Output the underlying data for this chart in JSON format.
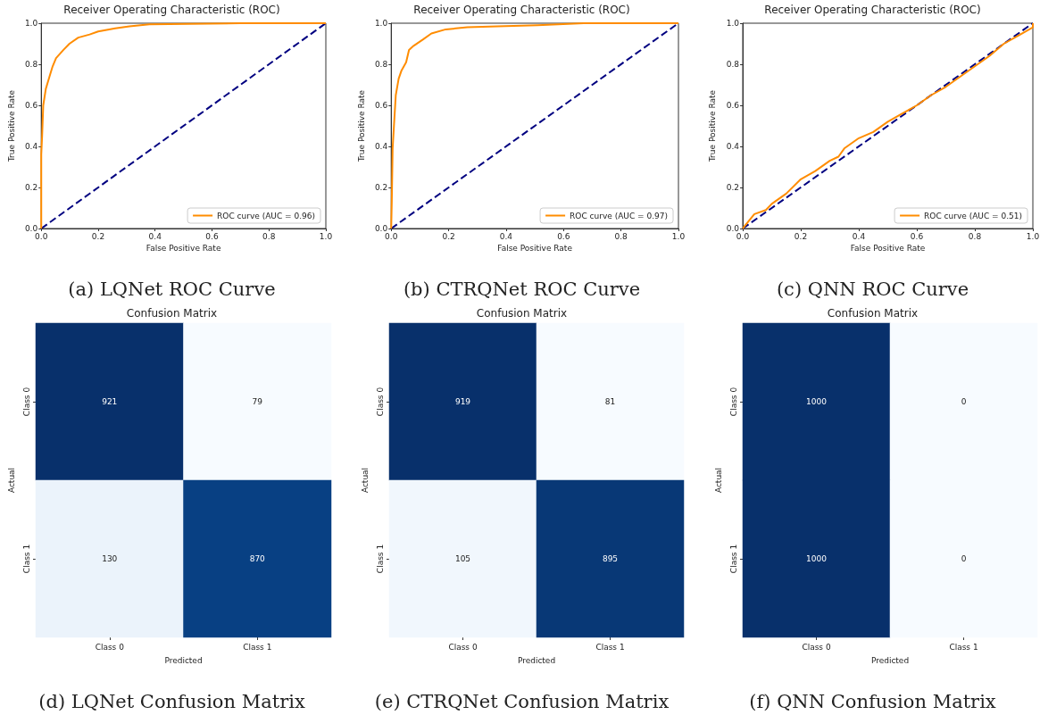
{
  "chart_data": [
    {
      "type": "line",
      "title": "Receiver Operating Characteristic (ROC)",
      "xlabel": "False Positive Rate",
      "ylabel": "True Positive Rate",
      "annotations": [
        "(a) LQNet ROC Curve"
      ],
      "xlim": [
        0,
        1
      ],
      "ylim": [
        0,
        1
      ],
      "xticks": [
        {
          "value": 0,
          "label": "0.0"
        },
        {
          "value": 0.2,
          "label": "0.2"
        },
        {
          "value": 0.4,
          "label": "0.4"
        },
        {
          "value": 0.6,
          "label": "0.6"
        },
        {
          "value": 0.8,
          "label": "0.8"
        },
        {
          "value": 1,
          "label": "1.0"
        }
      ],
      "yticks": [
        {
          "value": 0,
          "label": "0.0"
        },
        {
          "value": 0.2,
          "label": "0.2"
        },
        {
          "value": 0.4,
          "label": "0.4"
        },
        {
          "value": 0.6,
          "label": "0.6"
        },
        {
          "value": 0.8,
          "label": "0.8"
        },
        {
          "value": 1,
          "label": "1.0"
        }
      ],
      "legend": "bottom right",
      "series": [
        {
          "name": "ROC curve (AUC = 0.96)",
          "color": "#ff8c00",
          "line_style": "solid",
          "x": [
            0,
            0,
            0.003,
            0.007,
            0.016,
            0.029,
            0.04,
            0.052,
            0.078,
            0.099,
            0.13,
            0.17,
            0.2,
            0.26,
            0.31,
            0.38,
            0.7,
            1.0
          ],
          "values": [
            0,
            0.36,
            0.45,
            0.6,
            0.68,
            0.74,
            0.79,
            0.83,
            0.87,
            0.9,
            0.93,
            0.945,
            0.96,
            0.975,
            0.985,
            0.995,
            1.0,
            1.0
          ]
        },
        {
          "color": "#000080",
          "line_style": "dashed",
          "x": [
            0,
            1
          ],
          "values": [
            0,
            1
          ]
        }
      ]
    },
    {
      "type": "line",
      "title": "Receiver Operating Characteristic (ROC)",
      "xlabel": "False Positive Rate",
      "ylabel": "True Positive Rate",
      "annotations": [
        "(b) CTRQNet ROC Curve"
      ],
      "xlim": [
        0,
        1
      ],
      "ylim": [
        0,
        1
      ],
      "xticks": [
        {
          "value": 0,
          "label": "0.0"
        },
        {
          "value": 0.2,
          "label": "0.2"
        },
        {
          "value": 0.4,
          "label": "0.4"
        },
        {
          "value": 0.6,
          "label": "0.6"
        },
        {
          "value": 0.8,
          "label": "0.8"
        },
        {
          "value": 1,
          "label": "1.0"
        }
      ],
      "yticks": [
        {
          "value": 0,
          "label": "0.0"
        },
        {
          "value": 0.2,
          "label": "0.2"
        },
        {
          "value": 0.4,
          "label": "0.4"
        },
        {
          "value": 0.6,
          "label": "0.6"
        },
        {
          "value": 0.8,
          "label": "0.8"
        },
        {
          "value": 1,
          "label": "1.0"
        }
      ],
      "legend": "bottom right",
      "series": [
        {
          "name": "ROC curve (AUC = 0.97)",
          "color": "#ff8c00",
          "line_style": "solid",
          "x": [
            0,
            0.002,
            0.005,
            0.01,
            0.016,
            0.026,
            0.036,
            0.052,
            0.062,
            0.078,
            0.11,
            0.14,
            0.19,
            0.265,
            0.37,
            0.51,
            0.67,
            1.0
          ],
          "values": [
            0,
            0.13,
            0.39,
            0.51,
            0.65,
            0.73,
            0.77,
            0.81,
            0.87,
            0.89,
            0.92,
            0.95,
            0.97,
            0.98,
            0.985,
            0.99,
            1.0,
            1.0
          ]
        },
        {
          "color": "#000080",
          "line_style": "dashed",
          "x": [
            0,
            1
          ],
          "values": [
            0,
            1
          ]
        }
      ]
    },
    {
      "type": "line",
      "title": "Receiver Operating Characteristic (ROC)",
      "xlabel": "False Positive Rate",
      "ylabel": "True Positive Rate",
      "annotations": [
        "(c) QNN ROC Curve"
      ],
      "xlim": [
        0,
        1
      ],
      "ylim": [
        0,
        1
      ],
      "xticks": [
        {
          "value": 0,
          "label": "0.0"
        },
        {
          "value": 0.2,
          "label": "0.2"
        },
        {
          "value": 0.4,
          "label": "0.4"
        },
        {
          "value": 0.6,
          "label": "0.6"
        },
        {
          "value": 0.8,
          "label": "0.8"
        },
        {
          "value": 1,
          "label": "1.0"
        }
      ],
      "yticks": [
        {
          "value": 0,
          "label": "0.0"
        },
        {
          "value": 0.2,
          "label": "0.2"
        },
        {
          "value": 0.4,
          "label": "0.4"
        },
        {
          "value": 0.6,
          "label": "0.6"
        },
        {
          "value": 0.8,
          "label": "0.8"
        },
        {
          "value": 1,
          "label": "1.0"
        }
      ],
      "legend": "bottom right",
      "series": [
        {
          "name": "ROC curve (AUC = 0.51)",
          "color": "#ff8c00",
          "line_style": "solid",
          "x": [
            0,
            0.04,
            0.08,
            0.1,
            0.15,
            0.2,
            0.25,
            0.3,
            0.33,
            0.35,
            0.4,
            0.45,
            0.5,
            0.55,
            0.6,
            0.65,
            0.7,
            0.75,
            0.8,
            0.85,
            0.9,
            0.95,
            1.0,
            1.0
          ],
          "values": [
            0,
            0.07,
            0.09,
            0.12,
            0.17,
            0.24,
            0.28,
            0.33,
            0.35,
            0.39,
            0.44,
            0.47,
            0.52,
            0.56,
            0.6,
            0.65,
            0.69,
            0.74,
            0.79,
            0.84,
            0.9,
            0.94,
            0.98,
            1.0
          ]
        },
        {
          "color": "#000080",
          "line_style": "dashed",
          "x": [
            0,
            1
          ],
          "values": [
            0,
            1
          ]
        }
      ]
    },
    {
      "type": "heatmap",
      "title": "Confusion Matrix",
      "xlabel": "Predicted",
      "ylabel": "Actual",
      "annotations": [
        "(d) LQNet Confusion Matrix"
      ],
      "categories": [
        "Class 0",
        "Class 1"
      ],
      "y_categories": [
        "Class 0",
        "Class 1"
      ],
      "data_labels": true,
      "cells": [
        [
          921,
          79
        ],
        [
          130,
          870
        ]
      ]
    },
    {
      "type": "heatmap",
      "title": "Confusion Matrix",
      "xlabel": "Predicted",
      "ylabel": "Actual",
      "annotations": [
        "(e) CTRQNet Confusion Matrix"
      ],
      "categories": [
        "Class 0",
        "Class 1"
      ],
      "y_categories": [
        "Class 0",
        "Class 1"
      ],
      "data_labels": true,
      "cells": [
        [
          919,
          81
        ],
        [
          105,
          895
        ]
      ]
    },
    {
      "type": "heatmap",
      "title": "Confusion Matrix",
      "xlabel": "Predicted",
      "ylabel": "Actual",
      "annotations": [
        "(f) QNN Confusion Matrix"
      ],
      "categories": [
        "Class 0",
        "Class 1"
      ],
      "y_categories": [
        "Class 0",
        "Class 1"
      ],
      "data_labels": true,
      "cells": [
        [
          1000,
          0
        ],
        [
          1000,
          0
        ]
      ]
    }
  ]
}
